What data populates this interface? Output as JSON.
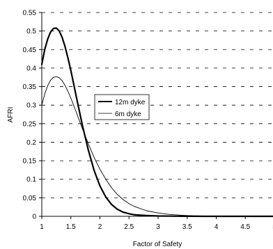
{
  "chart_data": {
    "type": "line",
    "xlabel": "Factor of Safety",
    "ylabel": "AFRI",
    "xlim": [
      1,
      5
    ],
    "ylim": [
      0,
      0.55
    ],
    "xticks": [
      "1",
      "1.5",
      "2",
      "2.5",
      "3",
      "3.5",
      "4",
      "4.5",
      "5"
    ],
    "yticks": [
      "0",
      "0.05",
      "0.1",
      "0.15",
      "0.2",
      "0.25",
      "0.3",
      "0.35",
      "0.4",
      "0.45",
      "0.5",
      "0.55"
    ],
    "grid": "horizontal dashed",
    "legend_position": "center-left",
    "series": [
      {
        "name": "12m dyke",
        "color": "#000000",
        "x": [
          1.0,
          1.05,
          1.1,
          1.15,
          1.2,
          1.25,
          1.3,
          1.35,
          1.4,
          1.45,
          1.5,
          1.6,
          1.7,
          1.8,
          1.9,
          2.0,
          2.1,
          2.2,
          2.3,
          2.4,
          2.5,
          2.6,
          2.8,
          3.0,
          3.2,
          3.4,
          3.6,
          3.8,
          4.0,
          4.5,
          5.0
        ],
        "y": [
          0.41,
          0.45,
          0.478,
          0.497,
          0.507,
          0.508,
          0.5,
          0.483,
          0.458,
          0.427,
          0.393,
          0.318,
          0.245,
          0.179,
          0.124,
          0.082,
          0.052,
          0.032,
          0.019,
          0.011,
          0.007,
          0.004,
          0.002,
          0.001,
          0.0005,
          0.0002,
          0.0001,
          0.0,
          0.0,
          0.0,
          0.0
        ]
      },
      {
        "name": "6m dyke",
        "color": "#000000",
        "x": [
          1.0,
          1.05,
          1.1,
          1.15,
          1.2,
          1.25,
          1.3,
          1.35,
          1.4,
          1.45,
          1.5,
          1.6,
          1.7,
          1.8,
          1.9,
          2.0,
          2.1,
          2.2,
          2.3,
          2.4,
          2.5,
          2.6,
          2.8,
          3.0,
          3.2,
          3.4,
          3.6,
          3.8,
          4.0,
          4.5,
          5.0
        ],
        "y": [
          0.3,
          0.33,
          0.352,
          0.367,
          0.375,
          0.377,
          0.374,
          0.366,
          0.353,
          0.337,
          0.319,
          0.278,
          0.236,
          0.196,
          0.159,
          0.127,
          0.1,
          0.077,
          0.059,
          0.045,
          0.034,
          0.026,
          0.015,
          0.009,
          0.005,
          0.003,
          0.0015,
          0.0008,
          0.0004,
          0.0001,
          0.0
        ]
      }
    ]
  }
}
